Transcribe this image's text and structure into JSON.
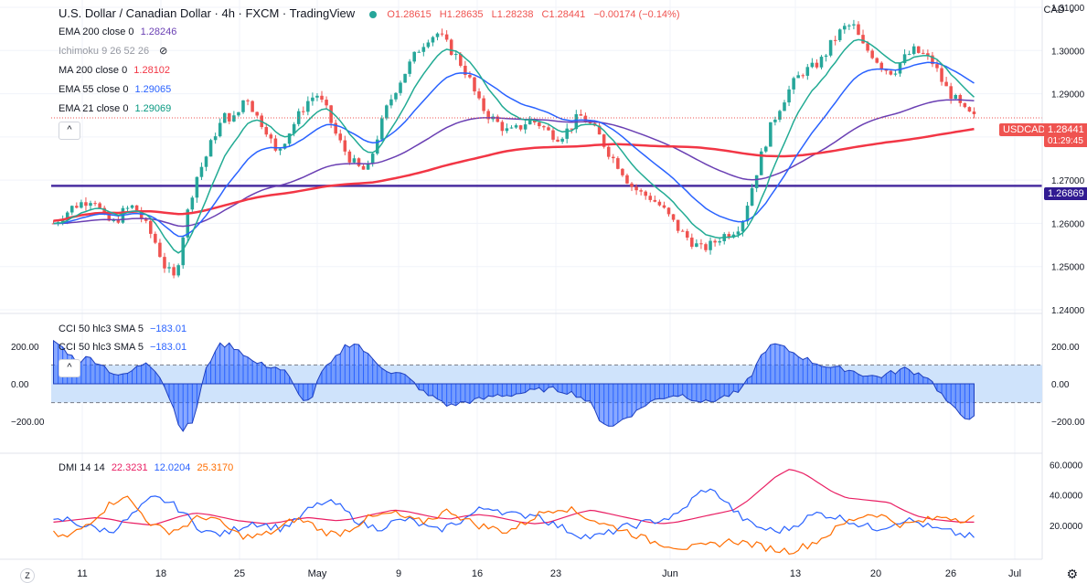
{
  "header": {
    "symbol_title": "U.S. Dollar / Canadian Dollar · 4h · FXCM · TradingView",
    "ohlc": {
      "o": "O1.28615",
      "h": "H1.28635",
      "l": "L1.28238",
      "c": "C1.28441",
      "change": "−0.00174 (−0.14%)"
    }
  },
  "indicators": [
    {
      "label": "EMA 200 close 0",
      "value": "1.28246",
      "color": "#6a3fb3"
    },
    {
      "label": "Ichimoku 9 26 52 26",
      "value": "",
      "color": "#9598a1"
    },
    {
      "label": "MA 200 close 0",
      "value": "1.28102",
      "color": "#f23645"
    },
    {
      "label": "EMA 55 close 0",
      "value": "1.29065",
      "color": "#2962ff"
    },
    {
      "label": "EMA 21 close 0",
      "value": "1.29069",
      "color": "#089981"
    }
  ],
  "currency": "CAD",
  "price_tags": {
    "symbol": "USDCAD",
    "last": "1.28441",
    "countdown": "01:29:45",
    "hline": "1.26869"
  },
  "cci_panel": {
    "label1": "CCI 50 hlc3 SMA 5",
    "value1": "−183.01",
    "label2": "CCI 50 hlc3 SMA 5",
    "value2": "−183.01"
  },
  "dmi_panel": {
    "label": "DMI 14 14",
    "adx": "22.3231",
    "minus_di": "12.0204",
    "plus_di": "25.3170"
  },
  "colors": {
    "up": "#26a69a",
    "down": "#ef5350",
    "ema200": "#6a3fb3",
    "ma200": "#f23645",
    "ema55": "#2962ff",
    "ema21": "#22ab94",
    "hline": "#4a2ea1",
    "cci_fill": "#2962ff",
    "cci_band": "#cfe3fb",
    "dmi_adx": "#e91e63",
    "dmi_minus": "#2962ff",
    "dmi_plus": "#ff6d00"
  },
  "chart_data": [
    {
      "type": "candlestick",
      "title": "U.S. Dollar / Canadian Dollar · 4h · FXCM",
      "y_axis_ticks": [
        "1.24000",
        "1.25000",
        "1.26000",
        "1.27000",
        "1.28000",
        "1.29000",
        "1.30000",
        "1.31000"
      ],
      "ylim": [
        1.24,
        1.31
      ],
      "x_axis_ticks": [
        "11",
        "18",
        "25",
        "May",
        "9",
        "16",
        "23",
        "Jun",
        "13",
        "20",
        "26",
        "Jul"
      ],
      "close_path": [
        1.26,
        1.262,
        1.264,
        1.265,
        1.266,
        1.261,
        1.26,
        1.263,
        1.264,
        1.26,
        1.256,
        1.25,
        1.247,
        1.26,
        1.27,
        1.275,
        1.281,
        1.285,
        1.284,
        1.29,
        1.285,
        1.282,
        1.276,
        1.28,
        1.284,
        1.288,
        1.29,
        1.286,
        1.28,
        1.276,
        1.273,
        1.272,
        1.28,
        1.287,
        1.292,
        1.296,
        1.3,
        1.303,
        1.304,
        1.301,
        1.298,
        1.294,
        1.288,
        1.285,
        1.283,
        1.281,
        1.282,
        1.284,
        1.283,
        1.281,
        1.28,
        1.282,
        1.285,
        1.283,
        1.28,
        1.276,
        1.273,
        1.269,
        1.267,
        1.266,
        1.264,
        1.261,
        1.258,
        1.256,
        1.254,
        1.255,
        1.257,
        1.258,
        1.26,
        1.268,
        1.276,
        1.283,
        1.288,
        1.292,
        1.295,
        1.296,
        1.298,
        1.302,
        1.305,
        1.306,
        1.301,
        1.299,
        1.296,
        1.295,
        1.298,
        1.3,
        1.299,
        1.297,
        1.292,
        1.289,
        1.286,
        1.2844
      ],
      "series": [
        {
          "name": "EMA 200",
          "last": 1.28246
        },
        {
          "name": "MA 200",
          "last": 1.28102
        },
        {
          "name": "EMA 55",
          "last": 1.29065
        },
        {
          "name": "EMA 21",
          "last": 1.29069
        }
      ],
      "horizontal_line": 1.26869,
      "last_price": 1.28441
    },
    {
      "type": "area",
      "title": "CCI 50 hlc3 SMA 5",
      "y_axis_ticks": [
        "200.00",
        "0.00",
        "−200.00"
      ],
      "ylim": [
        -350,
        350
      ],
      "band": [
        -100,
        100
      ],
      "values": [
        230,
        180,
        120,
        140,
        110,
        60,
        40,
        80,
        120,
        60,
        -80,
        -250,
        -200,
        60,
        200,
        210,
        180,
        120,
        100,
        90,
        60,
        -60,
        -100,
        60,
        120,
        200,
        220,
        150,
        100,
        60,
        50,
        0,
        -60,
        -80,
        -120,
        -100,
        -90,
        -80,
        -60,
        -60,
        -50,
        -40,
        -30,
        -30,
        -40,
        -60,
        -100,
        -200,
        -230,
        -180,
        -150,
        -100,
        -80,
        -60,
        -60,
        -80,
        -100,
        -80,
        -60,
        -40,
        60,
        180,
        210,
        180,
        150,
        120,
        100,
        80,
        80,
        60,
        40,
        40,
        60,
        80,
        60,
        40,
        -40,
        -120,
        -170,
        -183
      ]
    },
    {
      "type": "line",
      "title": "DMI 14 14",
      "y_axis_ticks": [
        "60.0000",
        "40.0000",
        "20.0000"
      ],
      "ylim": [
        0,
        65
      ],
      "series": [
        {
          "name": "ADX",
          "values": [
            22,
            23,
            24,
            25,
            24,
            22,
            21,
            20,
            23,
            26,
            28,
            27,
            25,
            23,
            22,
            21,
            22,
            24,
            25,
            24,
            23,
            24,
            26,
            28,
            30,
            29,
            27,
            25,
            24,
            26,
            27,
            26,
            24,
            22,
            21,
            22,
            25,
            28,
            30,
            28,
            26,
            24,
            22,
            21,
            22,
            24,
            26,
            28,
            30,
            36,
            44,
            52,
            57,
            54,
            48,
            42,
            38,
            37,
            36,
            35,
            30,
            26,
            24,
            23,
            22,
            22
          ]
        },
        {
          "name": "-DI",
          "values": [
            22,
            24,
            20,
            18,
            16,
            22,
            30,
            38,
            36,
            30,
            20,
            15,
            14,
            18,
            22,
            20,
            18,
            22,
            30,
            35,
            34,
            26,
            20,
            18,
            22,
            24,
            20,
            16,
            20,
            24,
            30,
            32,
            28,
            26,
            28,
            22,
            18,
            14,
            12,
            14,
            18,
            20,
            22,
            24,
            26,
            36,
            44,
            40,
            30,
            22,
            18,
            16,
            18,
            24,
            28,
            26,
            24,
            20,
            18,
            20,
            24,
            22,
            18,
            16,
            14,
            12
          ]
        },
        {
          "name": "+DI",
          "values": [
            14,
            12,
            18,
            26,
            34,
            40,
            30,
            20,
            16,
            18,
            24,
            26,
            20,
            14,
            12,
            14,
            18,
            24,
            22,
            16,
            14,
            18,
            24,
            26,
            28,
            24,
            22,
            26,
            30,
            24,
            20,
            18,
            16,
            20,
            26,
            30,
            32,
            28,
            24,
            20,
            18,
            14,
            10,
            8,
            6,
            5,
            6,
            8,
            10,
            8,
            6,
            4,
            3,
            6,
            10,
            16,
            22,
            26,
            28,
            24,
            20,
            22,
            24,
            26,
            24,
            25
          ]
        }
      ]
    }
  ]
}
